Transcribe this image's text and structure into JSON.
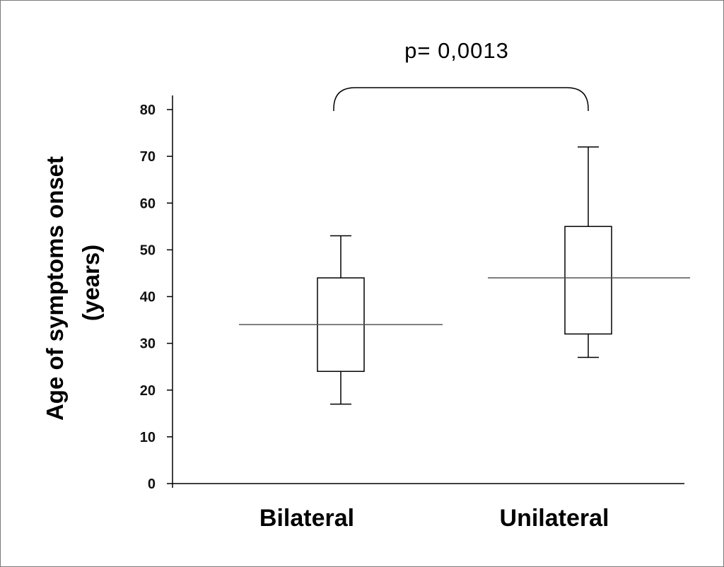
{
  "chart_data": {
    "type": "boxplot",
    "title": "",
    "ylabel_lines": [
      "Age of symptoms onset",
      "(years)"
    ],
    "xlabel": "",
    "ylim": [
      0,
      80
    ],
    "yticks": [
      0,
      10,
      20,
      30,
      40,
      50,
      60,
      70,
      80
    ],
    "categories": [
      "Bilateral",
      "Unilateral"
    ],
    "boxes": [
      {
        "category": "Bilateral",
        "whisker_low": 17,
        "q1": 24,
        "median": 34,
        "q3": 44,
        "whisker_high": 53
      },
      {
        "category": "Unilateral",
        "whisker_low": 27,
        "q1": 32,
        "median": 44,
        "q3": 55,
        "whisker_high": 72
      }
    ],
    "annotation": {
      "text": "p= 0,0013",
      "between": [
        "Bilateral",
        "Unilateral"
      ]
    },
    "grid": false,
    "colors": {
      "stroke": "#000000",
      "background": "#ffffff"
    }
  }
}
